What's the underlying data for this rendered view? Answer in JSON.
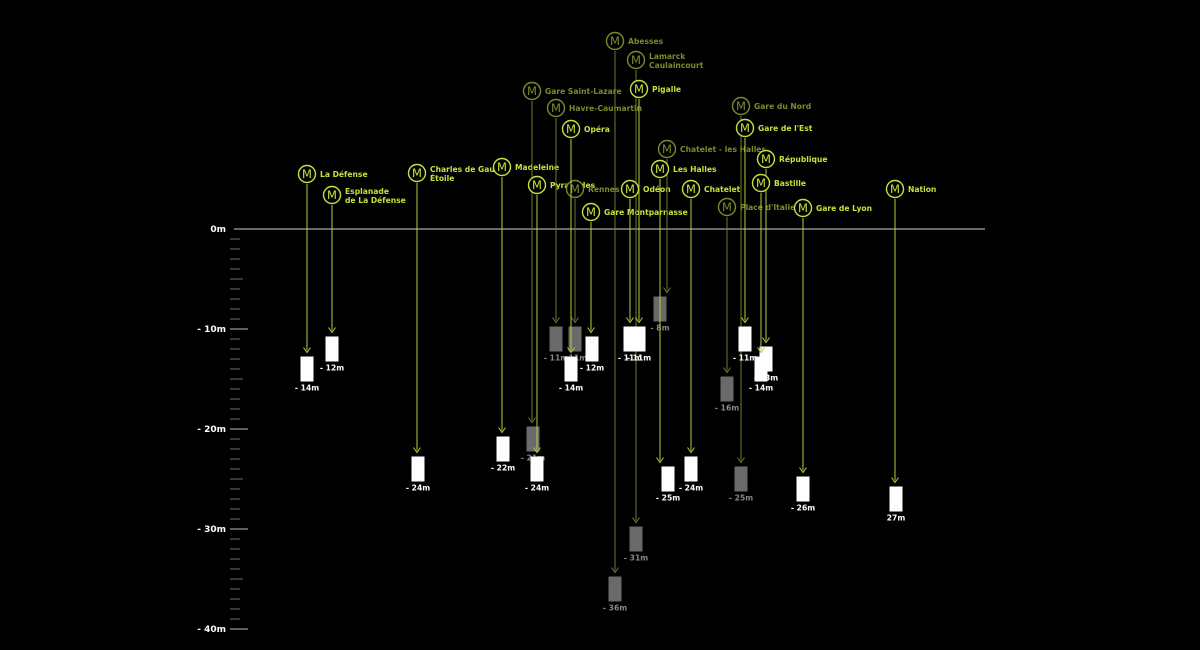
{
  "colors": {
    "background": "#000000",
    "accent": "#c8e03a",
    "accent_dim": "#7c8a2c",
    "line": "#cfcfcf",
    "box": "#ffffff",
    "box_dim": "#6a6a6a",
    "label": "#ffffff",
    "label_dim": "#8a8a8a"
  },
  "icon": {
    "name": "metro-m-icon",
    "glyph": "M"
  },
  "chart_data": {
    "type": "depth-diagram",
    "y_axis": {
      "unit": "m",
      "range": [
        0,
        -40
      ],
      "labeled_ticks": [
        {
          "value": 0,
          "label": "0m"
        },
        {
          "value": -10,
          "label": "- 10m"
        },
        {
          "value": -20,
          "label": "- 20m"
        },
        {
          "value": -30,
          "label": "- 30m"
        },
        {
          "value": -40,
          "label": "- 40m"
        }
      ],
      "minor_tick_step": 1
    },
    "stations": [
      {
        "name": "La Défense",
        "depth": -14,
        "depth_label": "- 14m",
        "dim": false
      },
      {
        "name": "Esplanade de La Défense",
        "depth": -12,
        "depth_label": "- 12m",
        "dim": false
      },
      {
        "name": "Charles de Gaulle Étoile",
        "depth": -24,
        "depth_label": "- 24m",
        "dim": false
      },
      {
        "name": "Madeleine",
        "depth": -22,
        "depth_label": "- 22m",
        "dim": false
      },
      {
        "name": "Gare Saint-Lazare",
        "depth": -21,
        "depth_label": "- 21m",
        "dim": true
      },
      {
        "name": "Havre-Caumartin",
        "depth": -11,
        "depth_label": "- 11m",
        "dim": true
      },
      {
        "name": "Pyramides",
        "depth": -24,
        "depth_label": "- 24m",
        "dim": false
      },
      {
        "name": "Rennes",
        "depth": -11,
        "depth_label": "- 11m",
        "dim": true
      },
      {
        "name": "Opéra",
        "depth": -14,
        "depth_label": "- 14m",
        "dim": false
      },
      {
        "name": "Gare Montparnasse",
        "depth": -12,
        "depth_label": "- 12m",
        "dim": false
      },
      {
        "name": "Abesses",
        "depth": -36,
        "depth_label": "- 36m",
        "dim": true
      },
      {
        "name": "Lamarck Caulaincourt",
        "depth": -31,
        "depth_label": "- 31m",
        "dim": true
      },
      {
        "name": "Pigalle",
        "depth": -11,
        "depth_label": "- 11m",
        "dim": false
      },
      {
        "name": "Odéon",
        "depth": -11,
        "depth_label": "- 11m",
        "dim": false
      },
      {
        "name": "Chatelet - les Halles",
        "depth": -8,
        "depth_label": "- 8m",
        "dim": true
      },
      {
        "name": "Les Halles",
        "depth": -25,
        "depth_label": "- 25m",
        "dim": false
      },
      {
        "name": "Chatelet",
        "depth": -24,
        "depth_label": "- 24m",
        "dim": false
      },
      {
        "name": "Place d'Italie",
        "depth": -16,
        "depth_label": "- 16m",
        "dim": true
      },
      {
        "name": "Gare du Nord",
        "depth": -25,
        "depth_label": "- 25m",
        "dim": true
      },
      {
        "name": "Gare de l'Est",
        "depth": -11,
        "depth_label": "- 11m",
        "dim": false
      },
      {
        "name": "République",
        "depth": -13,
        "depth_label": "- 13m",
        "dim": false
      },
      {
        "name": "Bastille",
        "depth": -14,
        "depth_label": "- 14m",
        "dim": false
      },
      {
        "name": "Gare de Lyon",
        "depth": -26,
        "depth_label": "- 26m",
        "dim": false
      },
      {
        "name": "Nation",
        "depth": -27,
        "depth_label": "27m",
        "dim": false
      }
    ]
  }
}
